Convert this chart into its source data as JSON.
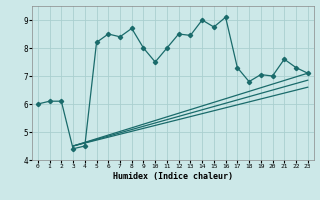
{
  "title": "",
  "xlabel": "Humidex (Indice chaleur)",
  "bg_color": "#cce8e8",
  "grid_color": "#aacfcf",
  "line_color": "#1a6b6b",
  "xlim": [
    -0.5,
    23.5
  ],
  "ylim": [
    4,
    9.5
  ],
  "yticks": [
    4,
    5,
    6,
    7,
    8,
    9
  ],
  "xticks": [
    0,
    1,
    2,
    3,
    4,
    5,
    6,
    7,
    8,
    9,
    10,
    11,
    12,
    13,
    14,
    15,
    16,
    17,
    18,
    19,
    20,
    21,
    22,
    23
  ],
  "main_x": [
    0,
    1,
    2,
    3,
    4,
    5,
    6,
    7,
    8,
    9,
    10,
    11,
    12,
    13,
    14,
    15,
    16,
    17,
    18,
    19,
    20,
    21,
    22,
    23
  ],
  "main_y": [
    6.0,
    6.1,
    6.1,
    4.4,
    4.5,
    8.2,
    8.5,
    8.4,
    8.7,
    8.0,
    7.5,
    8.0,
    8.5,
    8.45,
    9.0,
    8.75,
    9.1,
    7.3,
    6.8,
    7.05,
    7.0,
    7.6,
    7.3,
    7.1
  ],
  "line1_end_y": 7.1,
  "line2_end_y": 6.85,
  "line3_end_y": 6.6,
  "lines_start_x": 3,
  "lines_start_y": 4.5,
  "lines_end_x": 23
}
